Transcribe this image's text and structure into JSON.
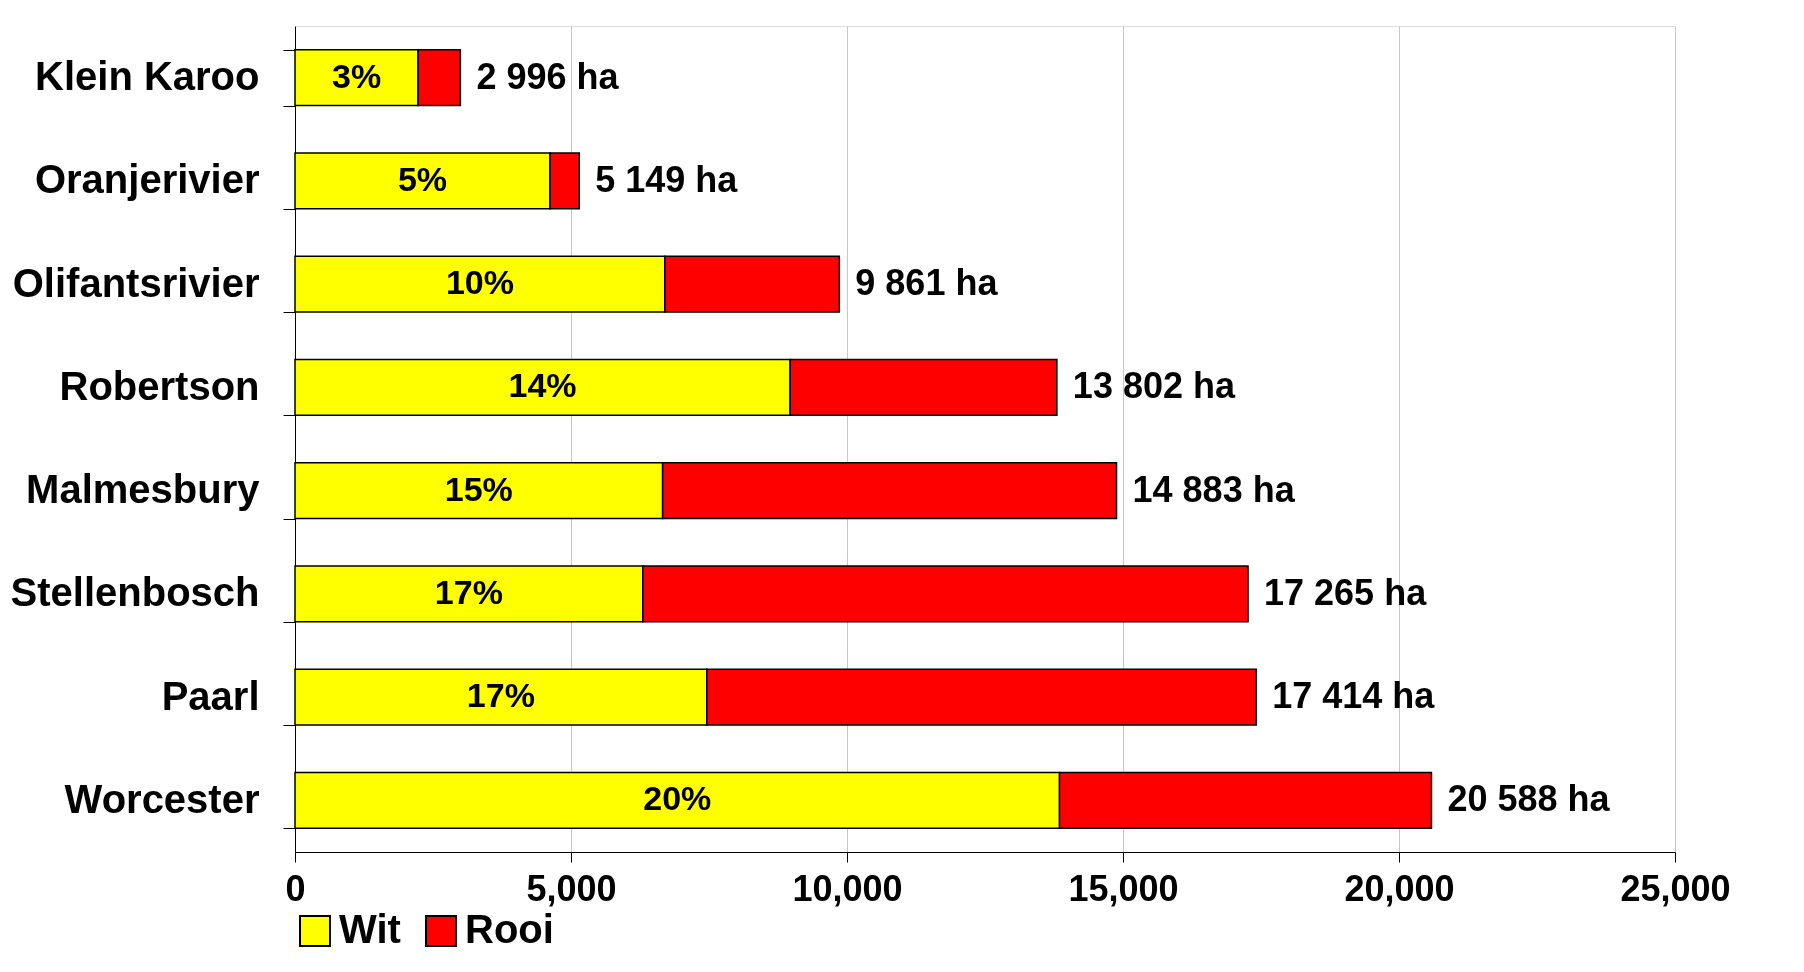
{
  "chart_data": {
    "type": "bar",
    "orientation": "horizontal",
    "stacked": true,
    "categories": [
      "Klein Karoo",
      "Oranjerivier",
      "Olifantsrivier",
      "Robertson",
      "Malmesbury",
      "Stellenbosch",
      "Paarl",
      "Worcester"
    ],
    "series": [
      {
        "name": "Wit",
        "color": "#ffff00",
        "values": [
          2230,
          4620,
          6700,
          8970,
          6660,
          6300,
          7460,
          13850
        ]
      },
      {
        "name": "Rooi",
        "color": "#ff0000",
        "values": [
          766,
          529,
          3161,
          4832,
          8223,
          10965,
          9954,
          6738
        ]
      }
    ],
    "totals": [
      "2 996 ha",
      "5 149 ha",
      "9 861 ha",
      "13 802 ha",
      "14 883 ha",
      "17 265 ha",
      "17 414 ha",
      "20 588 ha"
    ],
    "annotations": [
      "3%",
      "5%",
      "10%",
      "14%",
      "15%",
      "17%",
      "17%",
      "20%"
    ],
    "xlim": [
      0,
      25000
    ],
    "xticks": [
      {
        "value": 0,
        "label": "0"
      },
      {
        "value": 5000,
        "label": "5,000"
      },
      {
        "value": 10000,
        "label": "10,000"
      },
      {
        "value": 15000,
        "label": "15,000"
      },
      {
        "value": 20000,
        "label": "20,000"
      },
      {
        "value": 25000,
        "label": "25,000"
      }
    ],
    "grid": "x",
    "legend": "bottom"
  }
}
